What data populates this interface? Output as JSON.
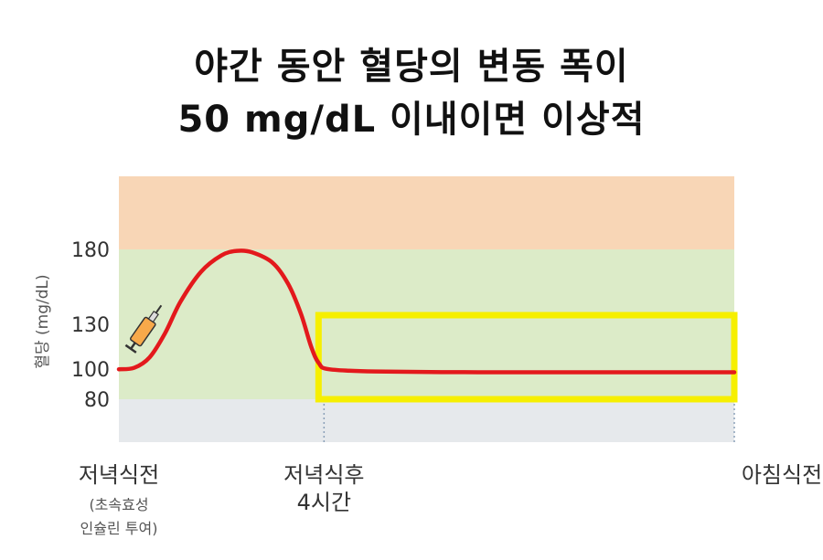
{
  "title_line1": "야간 동안 혈당의 변동 폭이",
  "title_line2": "50 mg/dL 이내이면 이상적",
  "chart_data": {
    "type": "line",
    "ylabel": "혈당 (mg/dL)",
    "ylim": [
      50,
      230
    ],
    "yticks": [
      "180",
      "130",
      "100",
      "80"
    ],
    "ytick_values": [
      180,
      130,
      100,
      80
    ],
    "bands": [
      {
        "from": 180,
        "to": 230,
        "color": "#f8d6b6"
      },
      {
        "from": 80,
        "to": 180,
        "color": "#dcebc8"
      },
      {
        "from": 50,
        "to": 80,
        "color": "#e6e9ec"
      }
    ],
    "x_labels": [
      {
        "t": 0,
        "label": "저녁식전",
        "sub": [
          "(초속효성",
          "인슐린 투여)"
        ]
      },
      {
        "t": 4,
        "label": "저녁식후",
        "sub": [
          "4시간"
        ]
      },
      {
        "t": 12,
        "label": "아침식전",
        "sub": []
      }
    ],
    "xlim": [
      0,
      12
    ],
    "series": [
      {
        "color": "#e3191c",
        "points": [
          [
            0,
            100
          ],
          [
            0.3,
            101
          ],
          [
            0.6,
            108
          ],
          [
            0.9,
            124
          ],
          [
            1.2,
            145
          ],
          [
            1.6,
            165
          ],
          [
            2.0,
            176
          ],
          [
            2.3,
            179
          ],
          [
            2.6,
            178
          ],
          [
            3.0,
            171
          ],
          [
            3.3,
            157
          ],
          [
            3.55,
            137
          ],
          [
            3.75,
            115
          ],
          [
            3.9,
            104
          ],
          [
            4.1,
            100
          ],
          [
            5,
            98.5
          ],
          [
            7,
            98
          ],
          [
            9,
            98
          ],
          [
            11,
            98
          ],
          [
            12,
            98
          ]
        ]
      }
    ],
    "highlight_box": {
      "x_from": 4,
      "x_to": 12,
      "y_from": 80,
      "y_to": 130,
      "color": "#f6ef00"
    },
    "syringe_icon": "syringe-icon"
  }
}
